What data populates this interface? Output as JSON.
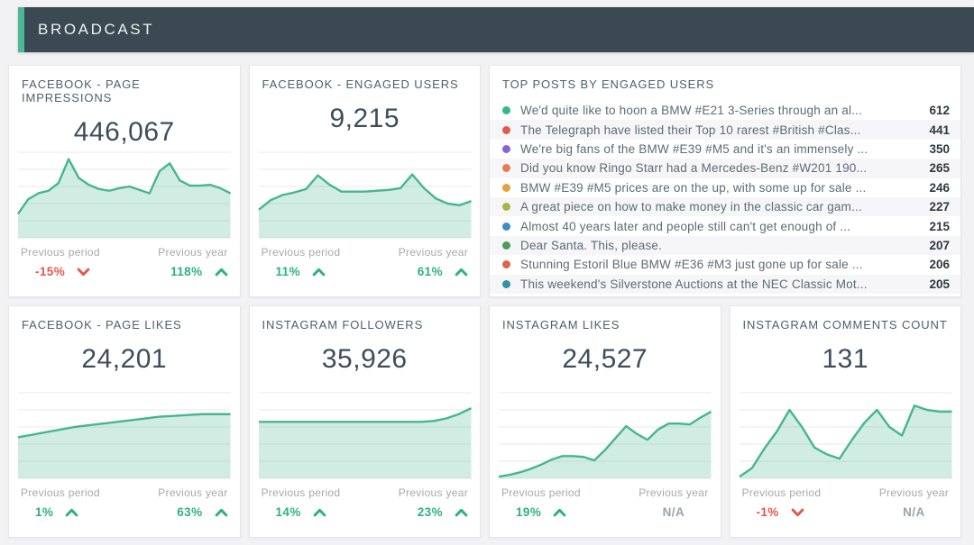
{
  "header": {
    "title": "BROADCAST"
  },
  "labels": {
    "previous_period": "Previous period",
    "previous_year": "Previous year"
  },
  "colors": {
    "positive": "#2eb086",
    "negative": "#e4584e",
    "na": "#9aa3ab",
    "chart_line": "#46b68f",
    "header_bg": "#3b4a52",
    "header_accent": "#4bb794"
  },
  "kpis": [
    {
      "id": "facebook-page-impressions",
      "title": "FACEBOOK - PAGE IMPRESSIONS",
      "value": "446,067",
      "previous_period": {
        "value": "-15%",
        "direction": "down",
        "sentiment": "negative"
      },
      "previous_year": {
        "value": "118%",
        "direction": "up",
        "sentiment": "positive"
      },
      "chart_index": 0
    },
    {
      "id": "facebook-engaged-users",
      "title": "FACEBOOK - ENGAGED USERS",
      "value": "9,215",
      "previous_period": {
        "value": "11%",
        "direction": "up",
        "sentiment": "positive"
      },
      "previous_year": {
        "value": "61%",
        "direction": "up",
        "sentiment": "positive"
      },
      "chart_index": 1
    },
    {
      "id": "facebook-page-likes",
      "title": "FACEBOOK - PAGE LIKES",
      "value": "24,201",
      "previous_period": {
        "value": "1%",
        "direction": "up",
        "sentiment": "positive"
      },
      "previous_year": {
        "value": "63%",
        "direction": "up",
        "sentiment": "positive"
      },
      "chart_index": 2
    },
    {
      "id": "instagram-followers",
      "title": "INSTAGRAM FOLLOWERS",
      "value": "35,926",
      "previous_period": {
        "value": "14%",
        "direction": "up",
        "sentiment": "positive"
      },
      "previous_year": {
        "value": "23%",
        "direction": "up",
        "sentiment": "positive"
      },
      "chart_index": 3
    },
    {
      "id": "instagram-likes",
      "title": "INSTAGRAM LIKES",
      "value": "24,527",
      "previous_period": {
        "value": "19%",
        "direction": "up",
        "sentiment": "positive"
      },
      "previous_year": {
        "value": "N/A",
        "direction": "none",
        "sentiment": "na"
      },
      "chart_index": 4
    },
    {
      "id": "instagram-comments-count",
      "title": "INSTAGRAM COMMENTS COUNT",
      "value": "131",
      "previous_period": {
        "value": "-1%",
        "direction": "down",
        "sentiment": "negative"
      },
      "previous_year": {
        "value": "N/A",
        "direction": "none",
        "sentiment": "na"
      },
      "chart_index": 5
    }
  ],
  "top_posts": {
    "title": "TOP POSTS BY ENGAGED USERS",
    "items": [
      {
        "dot_color": "#35b88b",
        "text": "We'd quite like to hoon a BMW #E21 3-Series through an al...",
        "value": "612"
      },
      {
        "dot_color": "#df5b50",
        "text": "The Telegraph have listed their Top 10 rarest #British #Clas...",
        "value": "441"
      },
      {
        "dot_color": "#8b62d4",
        "text": "We're big fans of the BMW #E39 #M5 and it's an immensely ...",
        "value": "350"
      },
      {
        "dot_color": "#e87c4e",
        "text": "Did you know Ringo Starr had a Mercedes-Benz #W201 190...",
        "value": "265"
      },
      {
        "dot_color": "#e1a43c",
        "text": "BMW #E39 #M5 prices are on the up, with some up for sale ...",
        "value": "246"
      },
      {
        "dot_color": "#a9b544",
        "text": "A great piece on how to make money in the classic car gam...",
        "value": "227"
      },
      {
        "dot_color": "#3f8dc3",
        "text": "Almost 40 years later and people still can't get enough of ...",
        "value": "215"
      },
      {
        "dot_color": "#4f9c59",
        "text": "Dear Santa. This, please.",
        "value": "207"
      },
      {
        "dot_color": "#df6449",
        "text": "Stunning Estoril Blue BMW #E36 #M3 just gone up for sale ...",
        "value": "206"
      },
      {
        "dot_color": "#2e93a4",
        "text": "This weekend's Silverstone Auctions at the NEC Classic Mot...",
        "value": "205"
      }
    ]
  },
  "chart_data": [
    {
      "type": "area",
      "title": "FACEBOOK - PAGE IMPRESSIONS",
      "subtitle": "sparkline trend, axes unlabeled",
      "x_type": "evenly spaced time periods",
      "y_scale": "relative 0-100 (% of chart height)",
      "grid": true,
      "values": [
        28,
        45,
        52,
        55,
        64,
        92,
        70,
        62,
        57,
        55,
        58,
        60,
        56,
        52,
        78,
        87,
        67,
        61,
        61,
        62,
        58,
        52
      ]
    },
    {
      "type": "area",
      "title": "FACEBOOK - ENGAGED USERS",
      "subtitle": "sparkline trend, axes unlabeled",
      "x_type": "evenly spaced time periods",
      "y_scale": "relative 0-100 (% of chart height)",
      "grid": true,
      "values": [
        33,
        44,
        50,
        53,
        57,
        73,
        62,
        54,
        54,
        54,
        55,
        56,
        58,
        74,
        58,
        46,
        40,
        38,
        43
      ]
    },
    {
      "type": "area",
      "title": "FACEBOOK - PAGE LIKES",
      "subtitle": "sparkline trend, axes unlabeled",
      "x_type": "evenly spaced time periods",
      "y_scale": "relative 0-100 (% of chart height)",
      "grid": true,
      "values": [
        48,
        51,
        54,
        57,
        60,
        62,
        64,
        66,
        68,
        70,
        72,
        73,
        74,
        75,
        75,
        75
      ]
    },
    {
      "type": "area",
      "title": "INSTAGRAM FOLLOWERS",
      "subtitle": "sparkline trend, axes unlabeled",
      "x_type": "evenly spaced time periods",
      "y_scale": "relative 0-100 (% of chart height)",
      "grid": true,
      "values": [
        66,
        66,
        66,
        66,
        66,
        66,
        66,
        66,
        66,
        66,
        66,
        66,
        66,
        66,
        67,
        70,
        75,
        82
      ]
    },
    {
      "type": "area",
      "title": "INSTAGRAM LIKES",
      "subtitle": "sparkline trend, axes unlabeled",
      "x_type": "evenly spaced time periods",
      "y_scale": "relative 0-100 (% of chart height)",
      "grid": true,
      "values": [
        2,
        4,
        7,
        11,
        16,
        22,
        26,
        26,
        25,
        21,
        33,
        47,
        61,
        52,
        45,
        57,
        64,
        64,
        63,
        71,
        78
      ]
    },
    {
      "type": "area",
      "title": "INSTAGRAM COMMENTS COUNT",
      "subtitle": "sparkline trend, axes unlabeled",
      "x_type": "evenly spaced time periods",
      "y_scale": "relative 0-100 (% of chart height)",
      "grid": true,
      "values": [
        2,
        12,
        35,
        55,
        80,
        60,
        36,
        28,
        23,
        45,
        65,
        80,
        60,
        50,
        85,
        80,
        78,
        78
      ]
    }
  ]
}
